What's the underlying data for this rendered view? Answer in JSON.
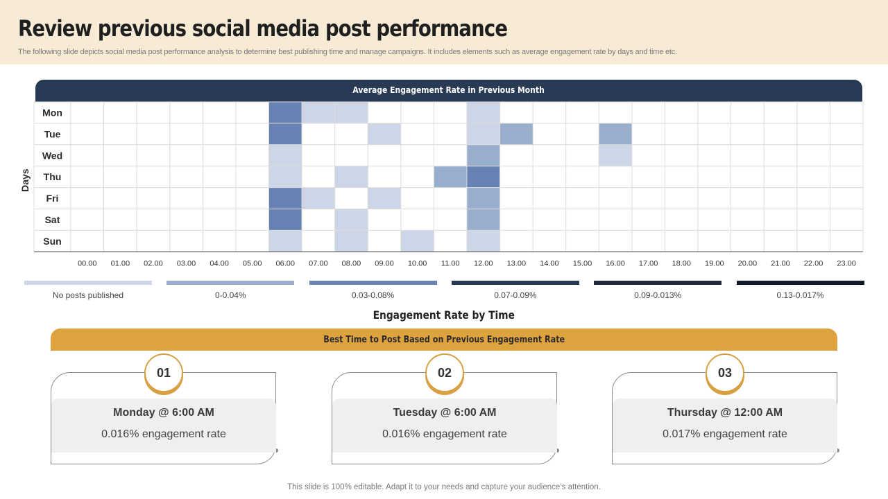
{
  "header": {
    "title": "Review previous social media post performance",
    "subtitle": "The following slide depicts social media post performance analysis to determine best publishing time and manage campaigns. It includes elements such as average engagement rate by days and time etc."
  },
  "chart_data": {
    "type": "heatmap",
    "title": "Average Engagement Rate in Previous Month",
    "ylabel": "Days",
    "xlabel": "",
    "rows": [
      "Mon",
      "Tue",
      "Wed",
      "Thu",
      "Fri",
      "Sat",
      "Sun"
    ],
    "columns": [
      "00.00",
      "01.00",
      "02.00",
      "03.00",
      "04.00",
      "05.00",
      "06.00",
      "07.00",
      "08.00",
      "09.00",
      "10.00",
      "11.00",
      "12.00",
      "13.00",
      "14.00",
      "15.00",
      "16.00",
      "17.00",
      "18.00",
      "19.00",
      "20.00",
      "21.00",
      "22.00",
      "23.00"
    ],
    "values": [
      [
        0,
        0,
        0,
        0,
        0,
        0,
        3,
        1,
        1,
        0,
        0,
        0,
        1,
        0,
        0,
        0,
        0,
        0,
        0,
        0,
        0,
        0,
        0,
        0
      ],
      [
        0,
        0,
        0,
        0,
        0,
        0,
        3,
        0,
        0,
        1,
        0,
        0,
        1,
        2,
        0,
        0,
        2,
        0,
        0,
        0,
        0,
        0,
        0,
        0
      ],
      [
        0,
        0,
        0,
        0,
        0,
        0,
        1,
        0,
        0,
        0,
        0,
        0,
        2,
        0,
        0,
        0,
        1,
        0,
        0,
        0,
        0,
        0,
        0,
        0
      ],
      [
        0,
        0,
        0,
        0,
        0,
        0,
        1,
        0,
        1,
        0,
        0,
        2,
        3,
        0,
        0,
        0,
        0,
        0,
        0,
        0,
        0,
        0,
        0,
        0
      ],
      [
        0,
        0,
        0,
        0,
        0,
        0,
        3,
        1,
        0,
        1,
        0,
        0,
        2,
        0,
        0,
        0,
        0,
        0,
        0,
        0,
        0,
        0,
        0,
        0
      ],
      [
        0,
        0,
        0,
        0,
        0,
        0,
        3,
        0,
        1,
        0,
        0,
        0,
        2,
        0,
        0,
        0,
        0,
        0,
        0,
        0,
        0,
        0,
        0,
        0
      ],
      [
        0,
        0,
        0,
        0,
        0,
        0,
        1,
        0,
        1,
        0,
        1,
        0,
        1,
        0,
        0,
        0,
        0,
        0,
        0,
        0,
        0,
        0,
        0,
        0
      ]
    ],
    "value_scale": "0 = empty cell, 1-3 = shade index into legend colors",
    "cell_colors": [
      "#ffffff",
      "#ccd6e6",
      "#99aecd",
      "#6783b4"
    ],
    "legend": [
      {
        "label": "No posts published",
        "color": "#ccd6e6"
      },
      {
        "label": "0-0.04%",
        "color": "#99aecd"
      },
      {
        "label": "0.03-0.08%",
        "color": "#6783b4"
      },
      {
        "label": "0.07-0.09%",
        "color": "#293a55"
      },
      {
        "label": "0.09-0.013%",
        "color": "#1e2a40"
      },
      {
        "label": "0.13-0.017%",
        "color": "#111a28"
      }
    ],
    "footer_label": "Engagement Rate by Time"
  },
  "best_times": {
    "banner": "Best Time to Post Based on Previous Engagement Rate",
    "cards": [
      {
        "number": "01",
        "title": "Monday @ 6:00 AM",
        "text": "0.016% engagement rate"
      },
      {
        "number": "02",
        "title": "Tuesday @ 6:00 AM",
        "text": "0.016% engagement rate"
      },
      {
        "number": "03",
        "title": "Thursday @ 12:00 AM",
        "text": "0.017% engagement rate"
      }
    ]
  },
  "footer": "This slide is 100% editable. Adapt it to your needs and capture your audience’s attention.",
  "colors": {
    "header_bg": "#f8ebd6",
    "banner_navy": "#293a55",
    "accent_gold": "#dea23e"
  }
}
